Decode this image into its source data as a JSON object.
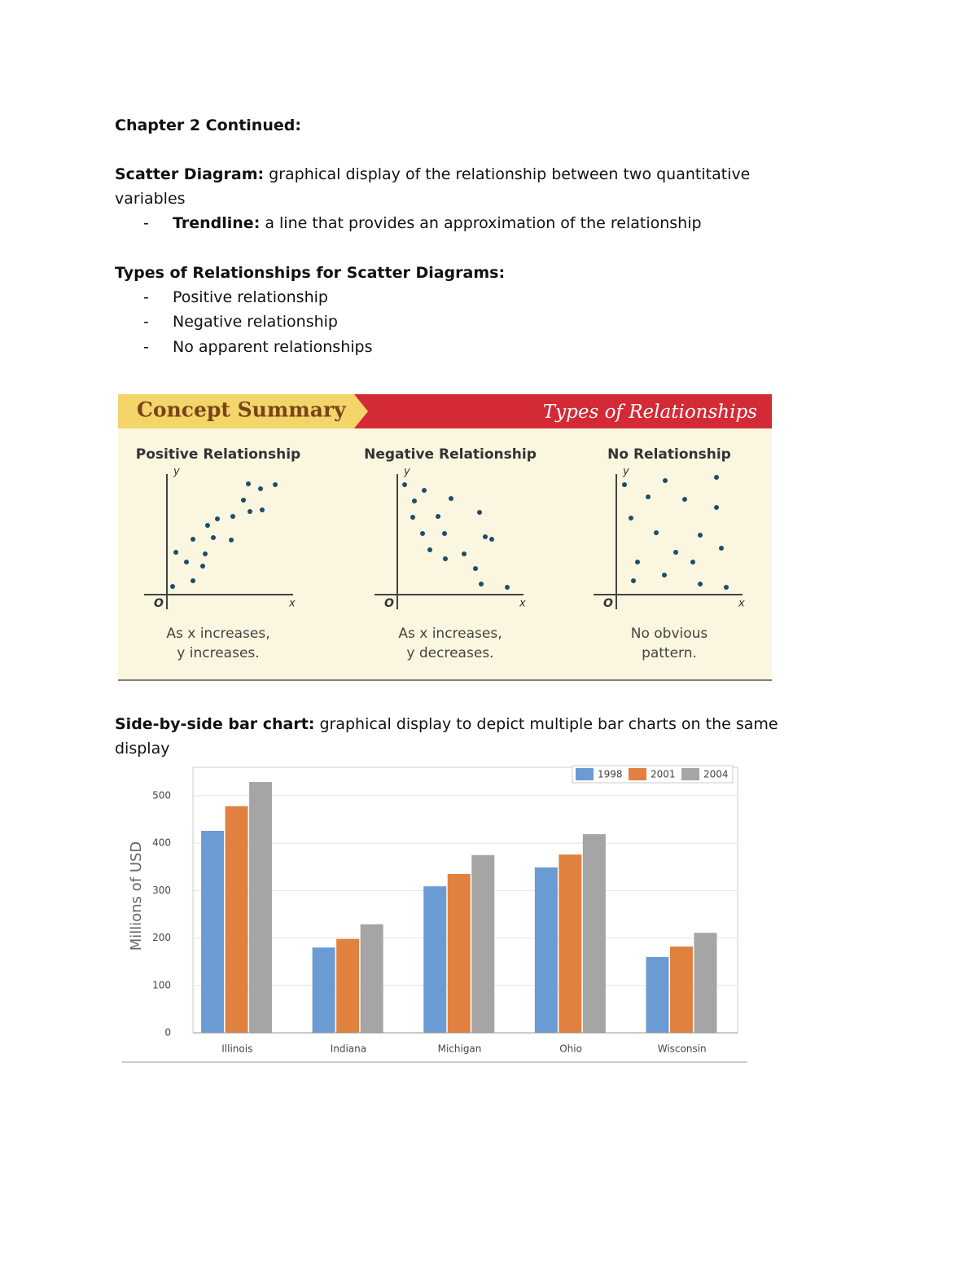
{
  "document": {
    "heading": "Chapter 2 Continued:",
    "scatter_def": {
      "term": "Scatter Diagram:",
      "text": " graphical display of the relationship between two quantitative",
      "text2": "variables"
    },
    "trendline": {
      "bullet": "-",
      "term": "Trendline:",
      "text": " a line that provides an approximation of the relationship"
    },
    "types_heading": "Types of Relationships for Scatter Diagrams:",
    "types": [
      {
        "bullet": "-",
        "text": "Positive relationship"
      },
      {
        "bullet": "-",
        "text": "Negative relationship"
      },
      {
        "bullet": "-",
        "text": "No apparent relationships"
      }
    ],
    "bar_def": {
      "term": "Side-by-side bar chart:",
      "text": " graphical display to depict multiple bar charts on the same",
      "text2": "display"
    }
  },
  "concept_summary": {
    "banner_left": "Concept Summary",
    "banner_right": "Types of Relationships",
    "panels": [
      {
        "title": "Positive Relationship",
        "origin": "O",
        "x_label": "x",
        "y_label": "y",
        "caption1": "As x increases,",
        "caption2": "y increases."
      },
      {
        "title": "Negative Relationship",
        "origin": "O",
        "x_label": "x",
        "y_label": "y",
        "caption1": "As x increases,",
        "caption2": "y decreases."
      },
      {
        "title": "No Relationship",
        "origin": "O",
        "x_label": "x",
        "y_label": "y",
        "caption1": "No obvious",
        "caption2": "pattern."
      }
    ]
  },
  "chart_data": {
    "type": "bar",
    "y_label": "Millions of USD",
    "categories": [
      "Illinois",
      "Indiana",
      "Michigan",
      "Ohio",
      "Wisconsin"
    ],
    "series": [
      {
        "name": "1998",
        "color": "#6a9bd3",
        "values": [
          426,
          180,
          309,
          349,
          160
        ]
      },
      {
        "name": "2001",
        "color": "#e0813f",
        "values": [
          478,
          198,
          335,
          376,
          182
        ]
      },
      {
        "name": "2004",
        "color": "#a5a5a5",
        "values": [
          529,
          229,
          375,
          419,
          211
        ]
      }
    ],
    "ylim": [
      0,
      560
    ],
    "yticks": [
      0,
      100,
      200,
      300,
      400,
      500
    ],
    "grid": true,
    "legend": "top-right"
  }
}
